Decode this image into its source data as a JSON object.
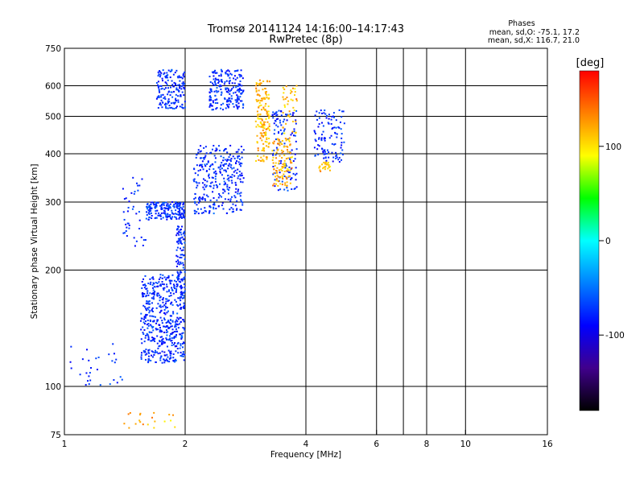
{
  "chart_data": {
    "type": "scatter",
    "title": "Tromsø 20141124 14:16:00–14:17:43",
    "subtitle": "RwPretec (8p)",
    "stats": {
      "heading": "Phases",
      "line1": "mean, sd,O: -75.1, 17.2",
      "line2": "mean, sd,X: 116.7, 21.0"
    },
    "xlabel": "Frequency [MHz]",
    "ylabel": "Stationary phase Virtual Height [km]",
    "x_scale": "log",
    "y_scale": "log",
    "xlim": [
      1,
      16
    ],
    "ylim": [
      75,
      750
    ],
    "x_ticks": [
      1,
      2,
      4,
      6,
      8,
      10,
      16
    ],
    "x_tick_labels": [
      "1",
      "2",
      "4",
      "6",
      "8",
      "10",
      "16"
    ],
    "y_ticks": [
      75,
      100,
      200,
      300,
      400,
      500,
      600,
      750
    ],
    "y_tick_labels": [
      "75",
      "100",
      "200",
      "300",
      "400",
      "500",
      "600",
      "750"
    ],
    "grid_x": [
      2,
      4,
      6,
      7,
      8,
      10
    ],
    "grid_y": [
      100,
      200,
      300,
      400,
      500,
      600
    ],
    "colorbar": {
      "label": "[deg]",
      "range": [
        -180,
        180
      ],
      "ticks": [
        -100,
        0,
        100
      ],
      "tick_labels": [
        "-100",
        "0",
        "100"
      ],
      "colors": [
        "#ff0000",
        "#ff8000",
        "#ffff00",
        "#00ff00",
        "#00ffff",
        "#0080ff",
        "#0000ff",
        "#40008c",
        "#000000"
      ]
    },
    "series": [
      {
        "name": "O",
        "phase_mean": -75.1,
        "phase_sd": 17.2,
        "regions": [
          {
            "f": [
              1.55,
              2.0
            ],
            "h": [
              115,
              195
            ],
            "n": 520
          },
          {
            "f": [
              1.6,
              2.0
            ],
            "h": [
              270,
              300
            ],
            "n": 180
          },
          {
            "f": [
              1.9,
              2.0
            ],
            "h": [
              180,
              260
            ],
            "n": 90
          },
          {
            "f": [
              1.7,
              2.0
            ],
            "h": [
              520,
              660
            ],
            "n": 160
          },
          {
            "f": [
              2.1,
              2.8
            ],
            "h": [
              280,
              420
            ],
            "n": 300
          },
          {
            "f": [
              2.3,
              2.8
            ],
            "h": [
              520,
              660
            ],
            "n": 200
          },
          {
            "f": [
              3.3,
              3.8
            ],
            "h": [
              320,
              520
            ],
            "n": 120
          },
          {
            "f": [
              4.2,
              5.0
            ],
            "h": [
              380,
              520
            ],
            "n": 110
          },
          {
            "f": [
              1.4,
              1.6
            ],
            "h": [
              230,
              350
            ],
            "n": 40
          },
          {
            "f": [
              1.0,
              1.4
            ],
            "h": [
              100,
              130
            ],
            "n": 30
          }
        ]
      },
      {
        "name": "X",
        "phase_mean": 116.7,
        "phase_sd": 21.0,
        "regions": [
          {
            "f": [
              3.0,
              3.25
            ],
            "h": [
              380,
              620
            ],
            "n": 160
          },
          {
            "f": [
              3.3,
              3.7
            ],
            "h": [
              330,
              440
            ],
            "n": 110
          },
          {
            "f": [
              4.3,
              4.6
            ],
            "h": [
              360,
              380
            ],
            "n": 25
          },
          {
            "f": [
              3.5,
              3.8
            ],
            "h": [
              450,
              600
            ],
            "n": 40
          },
          {
            "f": [
              1.4,
              1.9
            ],
            "h": [
              78,
              86
            ],
            "n": 20
          }
        ]
      }
    ]
  }
}
